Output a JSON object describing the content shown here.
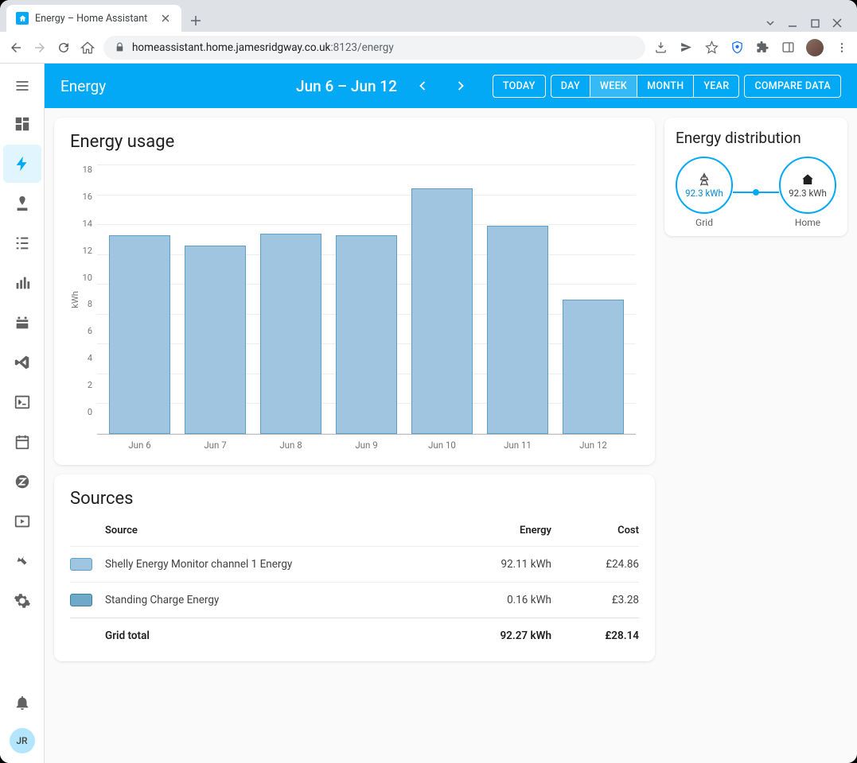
{
  "browser": {
    "tab_title": "Energy – Home Assistant",
    "url_host": "homeassistant.home.jamesridgway.co.uk",
    "url_port": ":8123",
    "url_path": "/energy"
  },
  "header": {
    "title": "Energy",
    "date_range": "Jun 6 – Jun 12",
    "buttons": {
      "today": "TODAY",
      "compare": "COMPARE DATA"
    },
    "segments": {
      "day": "DAY",
      "week": "WEEK",
      "month": "MONTH",
      "year": "YEAR"
    },
    "active_segment": "WEEK"
  },
  "sidebar": {
    "user_initials": "JR"
  },
  "usage_card": {
    "title": "Energy usage",
    "chart": {
      "type": "bar",
      "ylabel": "kWh",
      "ymax": 18,
      "ytick_step": 2,
      "bar_fill": "#9fc5e0",
      "bar_stroke": "#5ca0c7",
      "grid_color": "#eeeeee",
      "axis_color": "#bdbdbd",
      "categories": [
        "Jun 6",
        "Jun 7",
        "Jun 8",
        "Jun 9",
        "Jun 10",
        "Jun 11",
        "Jun 12"
      ],
      "values": [
        13.3,
        12.6,
        13.4,
        13.3,
        16.4,
        13.9,
        9.0
      ]
    }
  },
  "sources_card": {
    "title": "Sources",
    "columns": {
      "source": "Source",
      "energy": "Energy",
      "cost": "Cost"
    },
    "rows": [
      {
        "swatch": "#9fc5e0",
        "swatch_border": "#5ca0c7",
        "name": "Shelly Energy Monitor channel 1 Energy",
        "energy": "92.11 kWh",
        "cost": "£24.86"
      },
      {
        "swatch": "#6fa9c8",
        "swatch_border": "#3d7fa4",
        "name": "Standing Charge Energy",
        "energy": "0.16 kWh",
        "cost": "£3.28"
      }
    ],
    "total": {
      "label": "Grid total",
      "energy": "92.27 kWh",
      "cost": "£28.14"
    }
  },
  "distribution_card": {
    "title": "Energy distribution",
    "grid": {
      "label": "Grid",
      "value": "92.3 kWh",
      "color": "#03a9f4",
      "text_color": "#0288d1"
    },
    "home": {
      "label": "Home",
      "value": "92.3 kWh",
      "color": "#03a9f4",
      "text_color": "#424242"
    }
  },
  "colors": {
    "primary": "#03a9f4",
    "sidebar_active_bg": "#e1f5fe"
  }
}
